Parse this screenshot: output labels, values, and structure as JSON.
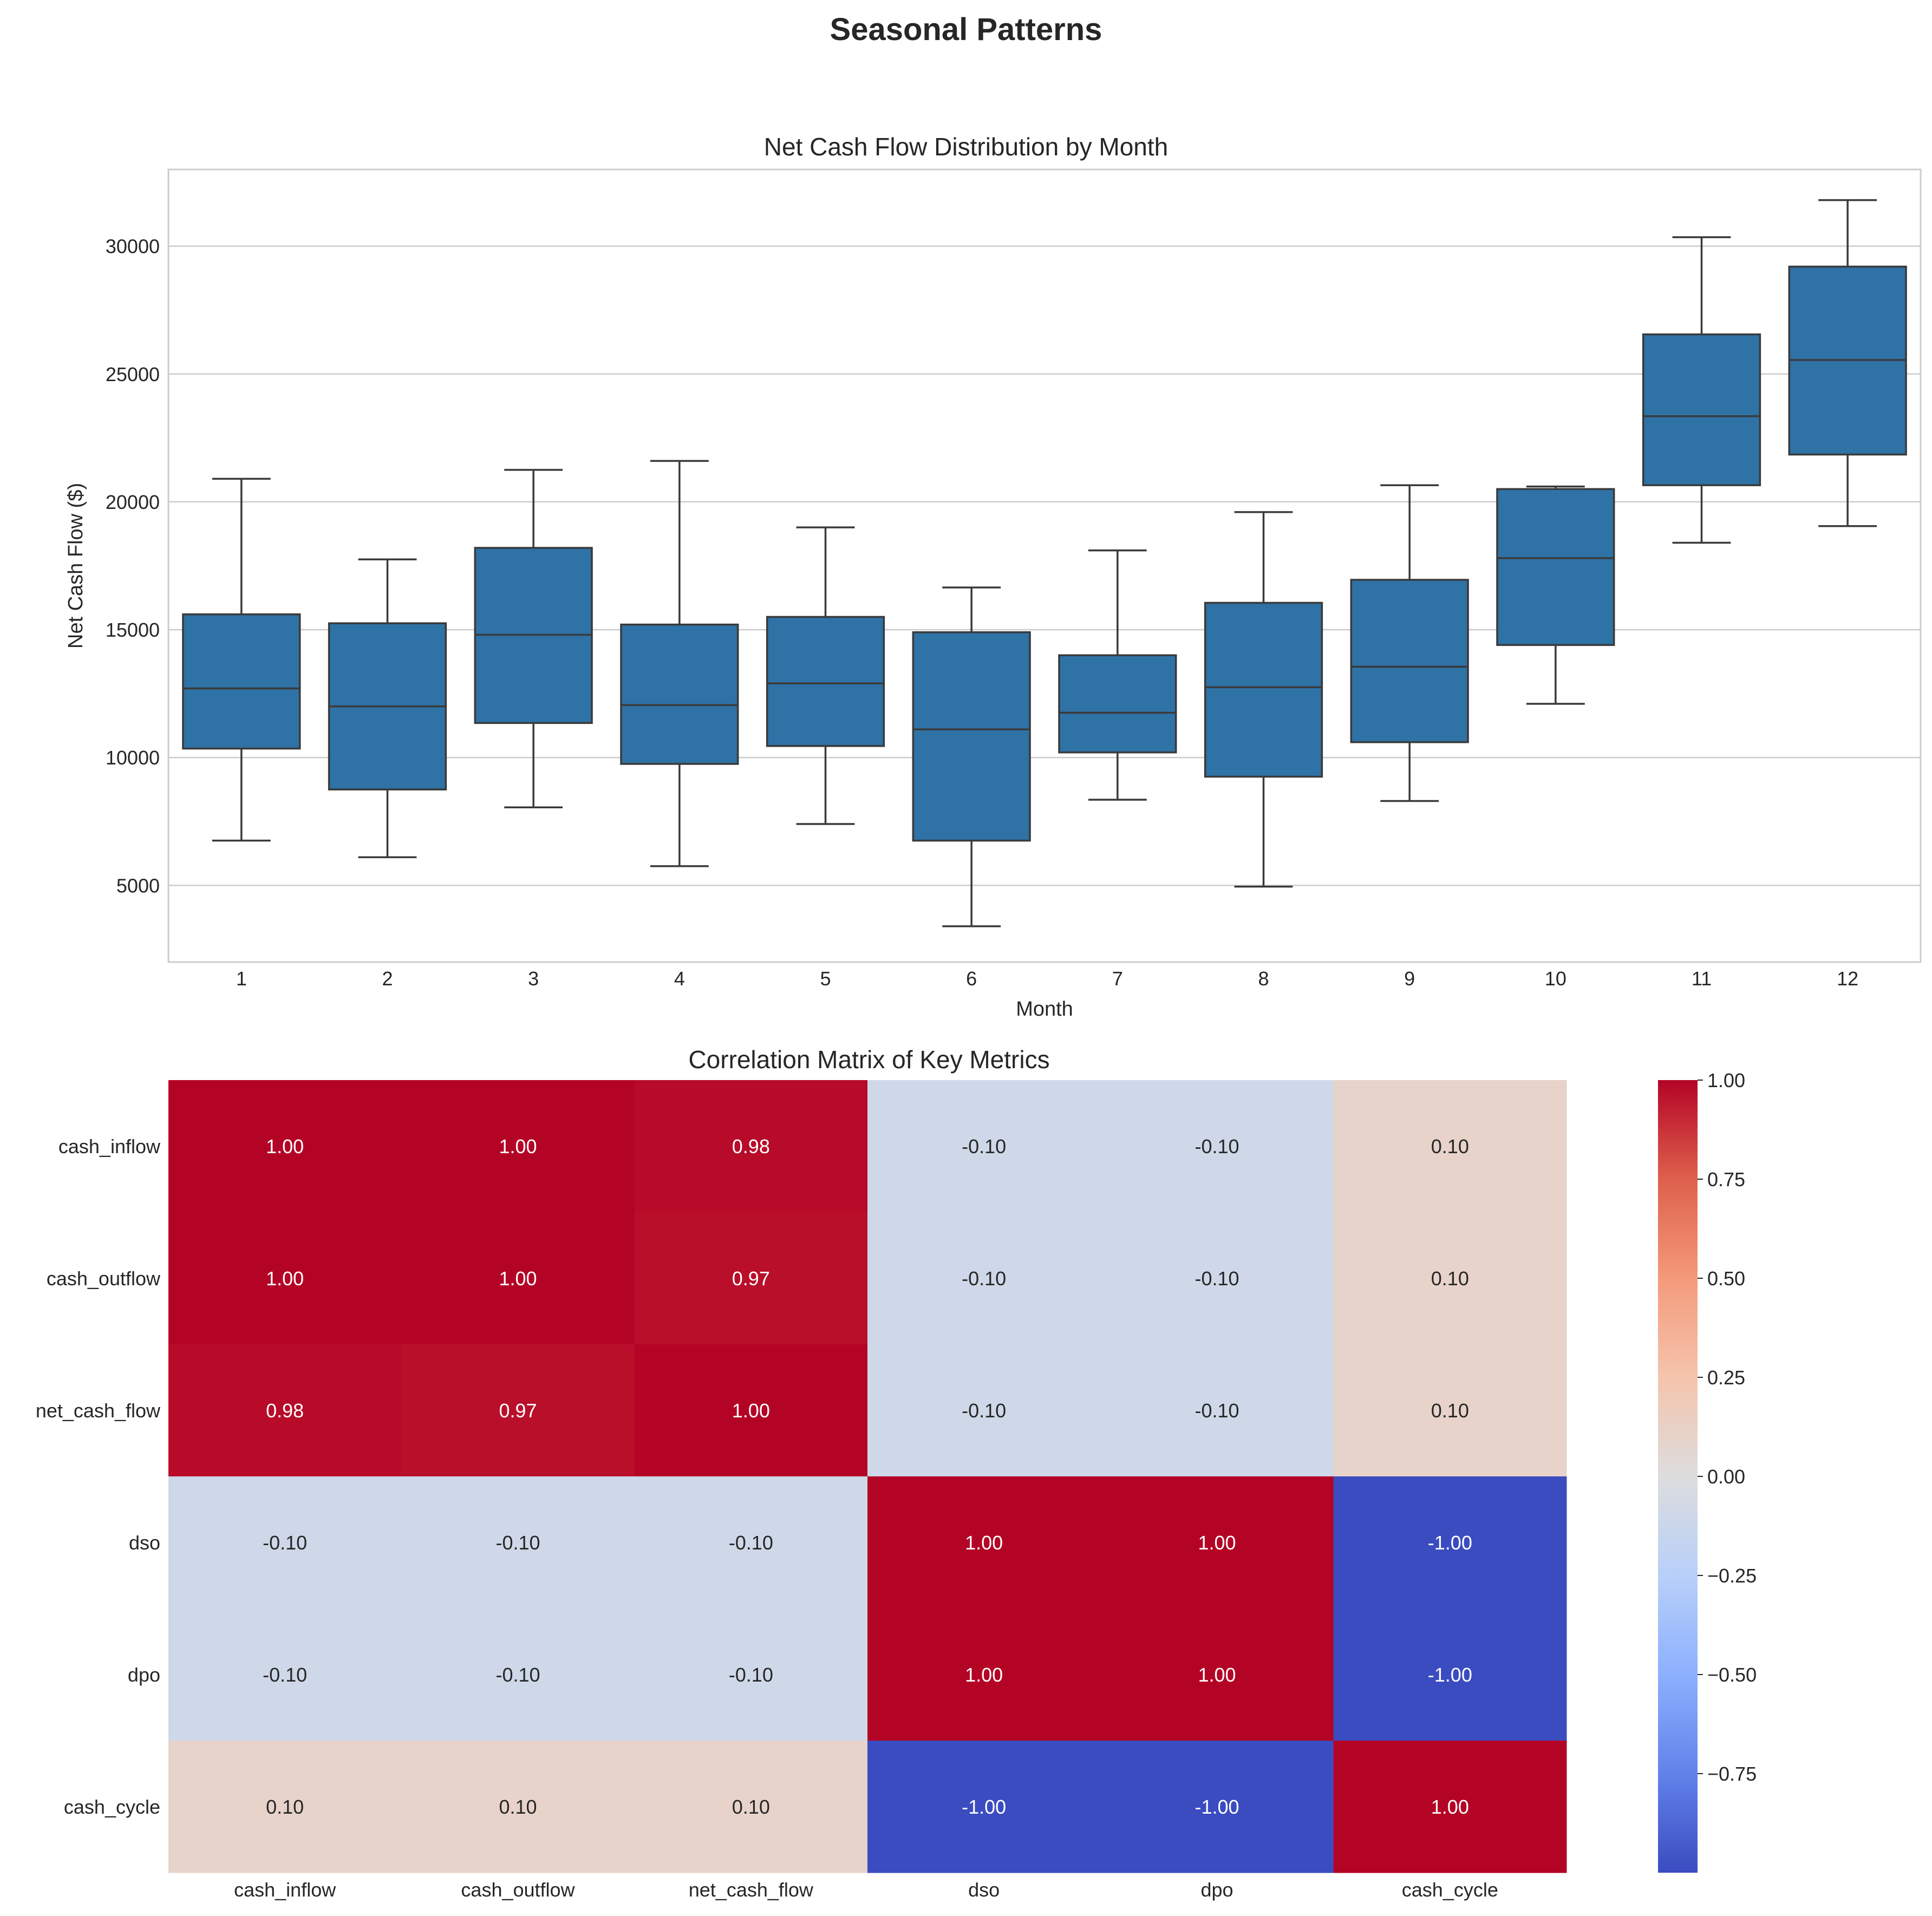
{
  "figure_title": "Seasonal Patterns",
  "chart_data": [
    {
      "type": "box",
      "title": "Net Cash Flow Distribution by Month",
      "xlabel": "Month",
      "ylabel": "Net Cash Flow ($)",
      "categories": [
        "1",
        "2",
        "3",
        "4",
        "5",
        "6",
        "7",
        "8",
        "9",
        "10",
        "11",
        "12"
      ],
      "ylim": [
        2000,
        33000
      ],
      "yticks": [
        5000,
        10000,
        15000,
        20000,
        25000,
        30000
      ],
      "grid": true,
      "color": "#2e72a6",
      "boxes": [
        {
          "whisker_low": 6750,
          "q1": 10350,
          "median": 12700,
          "q3": 15600,
          "whisker_high": 20900
        },
        {
          "whisker_low": 6100,
          "q1": 8750,
          "median": 12000,
          "q3": 15250,
          "whisker_high": 17750
        },
        {
          "whisker_low": 8050,
          "q1": 11350,
          "median": 14800,
          "q3": 18200,
          "whisker_high": 21250
        },
        {
          "whisker_low": 5750,
          "q1": 9750,
          "median": 12050,
          "q3": 15200,
          "whisker_high": 21600
        },
        {
          "whisker_low": 7400,
          "q1": 10450,
          "median": 12900,
          "q3": 15500,
          "whisker_high": 19000
        },
        {
          "whisker_low": 3400,
          "q1": 6750,
          "median": 11100,
          "q3": 14900,
          "whisker_high": 16650
        },
        {
          "whisker_low": 8350,
          "q1": 10200,
          "median": 11750,
          "q3": 14000,
          "whisker_high": 18100
        },
        {
          "whisker_low": 4950,
          "q1": 9250,
          "median": 12750,
          "q3": 16050,
          "whisker_high": 19600
        },
        {
          "whisker_low": 8300,
          "q1": 10600,
          "median": 13550,
          "q3": 16950,
          "whisker_high": 20650
        },
        {
          "whisker_low": 12100,
          "q1": 14400,
          "median": 17800,
          "q3": 20500,
          "whisker_high": 20600
        },
        {
          "whisker_low": 18400,
          "q1": 20650,
          "median": 23350,
          "q3": 26550,
          "whisker_high": 30350
        },
        {
          "whisker_low": 19050,
          "q1": 21850,
          "median": 25550,
          "q3": 29200,
          "whisker_high": 31800
        }
      ]
    },
    {
      "type": "heatmap",
      "title": "Correlation Matrix of Key Metrics",
      "labels": [
        "cash_inflow",
        "cash_outflow",
        "net_cash_flow",
        "dso",
        "dpo",
        "cash_cycle"
      ],
      "values": [
        [
          1.0,
          1.0,
          0.98,
          -0.1,
          -0.1,
          0.1
        ],
        [
          1.0,
          1.0,
          0.97,
          -0.1,
          -0.1,
          0.1
        ],
        [
          0.98,
          0.97,
          1.0,
          -0.1,
          -0.1,
          0.1
        ],
        [
          -0.1,
          -0.1,
          -0.1,
          1.0,
          1.0,
          -1.0
        ],
        [
          -0.1,
          -0.1,
          -0.1,
          1.0,
          1.0,
          -1.0
        ],
        [
          0.1,
          0.1,
          0.1,
          -1.0,
          -1.0,
          1.0
        ]
      ],
      "colormap": "coolwarm",
      "colorbar_range": [
        -1,
        1
      ],
      "colorbar_ticks": [
        "1.00",
        "0.75",
        "0.50",
        "0.25",
        "0.00",
        "−0.25",
        "−0.50",
        "−0.75"
      ],
      "colorbar_tick_values": [
        1.0,
        0.75,
        0.5,
        0.25,
        0.0,
        -0.25,
        -0.5,
        -0.75
      ]
    }
  ]
}
